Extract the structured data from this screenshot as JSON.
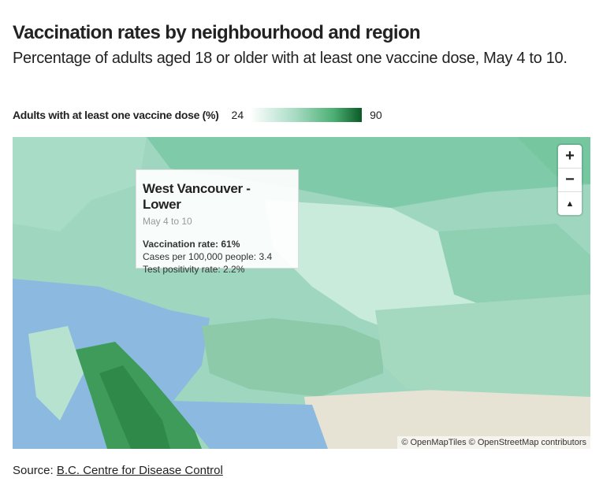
{
  "header": {
    "title": "Vaccination rates by neighbourhood and region",
    "subtitle": "Percentage of adults aged 18 or older with at least one vaccine dose, May 4 to 10."
  },
  "legend": {
    "label": "Adults with at least one vaccine dose (%)",
    "min": "24",
    "max": "90"
  },
  "map": {
    "zoom_in": "+",
    "zoom_out": "−",
    "reset": "▲",
    "tooltip": {
      "title": "West Vancouver - Lower",
      "date": "May 4 to 10",
      "lines": [
        "Vaccination rate: 61%",
        "Cases per 100,000 people: 3.4",
        "Test positivity rate: 2.2%"
      ]
    },
    "attribution": "© OpenMapTiles © OpenStreetMap contributors"
  },
  "footer": {
    "prefix": "Source:",
    "link": "B.C. Centre for Disease Control"
  }
}
